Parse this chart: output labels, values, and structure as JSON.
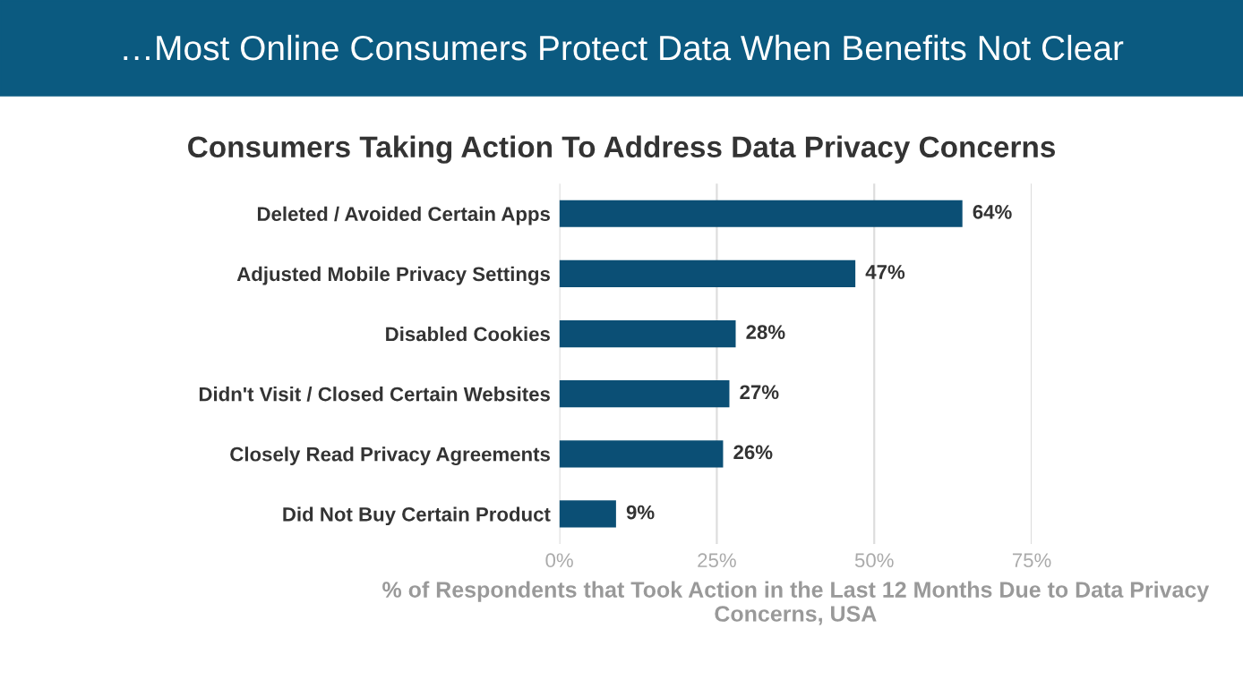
{
  "chart_data": {
    "type": "bar",
    "orientation": "horizontal",
    "title": "…Most Online Consumers Protect Data When Benefits Not Clear",
    "subtitle": "Consumers Taking Action To Address Data Privacy Concerns",
    "xlabel": "% of Respondents that Took Action in the Last 12 Months Due to Data Privacy Concerns, USA",
    "categories": [
      "Deleted / Avoided Certain Apps",
      "Adjusted Mobile Privacy Settings",
      "Disabled Cookies",
      "Didn't Visit / Closed Certain Websites",
      "Closely Read Privacy Agreements",
      "Did Not Buy Certain Product"
    ],
    "values": [
      64,
      47,
      28,
      27,
      26,
      9
    ],
    "value_labels": [
      "64%",
      "47%",
      "28%",
      "27%",
      "26%",
      "9%"
    ],
    "color": "#0b4f75",
    "xlim": [
      0,
      75
    ],
    "xticks": [
      {
        "value": 0,
        "label": "0%"
      },
      {
        "value": 25,
        "label": "25%"
      },
      {
        "value": 50,
        "label": "50%"
      },
      {
        "value": 75,
        "label": "75%"
      }
    ],
    "grid": "x"
  }
}
